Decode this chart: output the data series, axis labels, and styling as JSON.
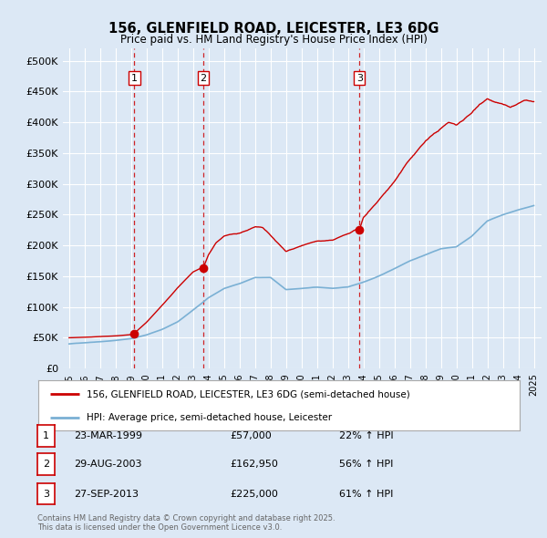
{
  "title_line1": "156, GLENFIELD ROAD, LEICESTER, LE3 6DG",
  "title_line2": "Price paid vs. HM Land Registry's House Price Index (HPI)",
  "ylabel_ticks": [
    "£0",
    "£50K",
    "£100K",
    "£150K",
    "£200K",
    "£250K",
    "£300K",
    "£350K",
    "£400K",
    "£450K",
    "£500K"
  ],
  "ytick_values": [
    0,
    50000,
    100000,
    150000,
    200000,
    250000,
    300000,
    350000,
    400000,
    450000,
    500000
  ],
  "ylim": [
    0,
    520000
  ],
  "xlim_start": 1994.6,
  "xlim_end": 2025.5,
  "background_color": "#dce8f5",
  "plot_bg_color": "#dce8f5",
  "grid_color": "#ffffff",
  "red_line_color": "#cc0000",
  "blue_line_color": "#7ab0d4",
  "transaction_markers": [
    {
      "year": 1999.22,
      "price": 57000,
      "label": "1"
    },
    {
      "year": 2003.66,
      "price": 162950,
      "label": "2"
    },
    {
      "year": 2013.74,
      "price": 225000,
      "label": "3"
    }
  ],
  "legend_entries": [
    {
      "color": "#cc0000",
      "text": "156, GLENFIELD ROAD, LEICESTER, LE3 6DG (semi-detached house)"
    },
    {
      "color": "#7ab0d4",
      "text": "HPI: Average price, semi-detached house, Leicester"
    }
  ],
  "table_rows": [
    {
      "num": "1",
      "date": "23-MAR-1999",
      "price": "£57,000",
      "change": "22% ↑ HPI"
    },
    {
      "num": "2",
      "date": "29-AUG-2003",
      "price": "£162,950",
      "change": "56% ↑ HPI"
    },
    {
      "num": "3",
      "date": "27-SEP-2013",
      "price": "£225,000",
      "change": "61% ↑ HPI"
    }
  ],
  "footnote": "Contains HM Land Registry data © Crown copyright and database right 2025.\nThis data is licensed under the Open Government Licence v3.0."
}
